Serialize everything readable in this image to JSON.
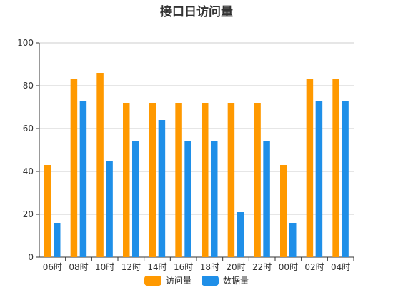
{
  "chart_data": {
    "type": "bar",
    "title": "接口日访问量",
    "categories": [
      "06时",
      "08时",
      "10时",
      "12时",
      "14时",
      "16时",
      "18时",
      "20时",
      "22时",
      "00时",
      "02时",
      "04时"
    ],
    "series": [
      {
        "name": "访问量",
        "color": "#ff9900",
        "values": [
          43,
          83,
          86,
          72,
          72,
          72,
          72,
          72,
          72,
          43,
          83,
          83
        ]
      },
      {
        "name": "数据量",
        "color": "#1f8fe8",
        "values": [
          16,
          73,
          45,
          54,
          64,
          54,
          54,
          21,
          54,
          16,
          73,
          73
        ]
      }
    ],
    "ylim": [
      0,
      100
    ],
    "yticks": [
      0,
      20,
      40,
      60,
      80,
      100
    ],
    "grid": true,
    "legend_position": "bottom-center"
  }
}
